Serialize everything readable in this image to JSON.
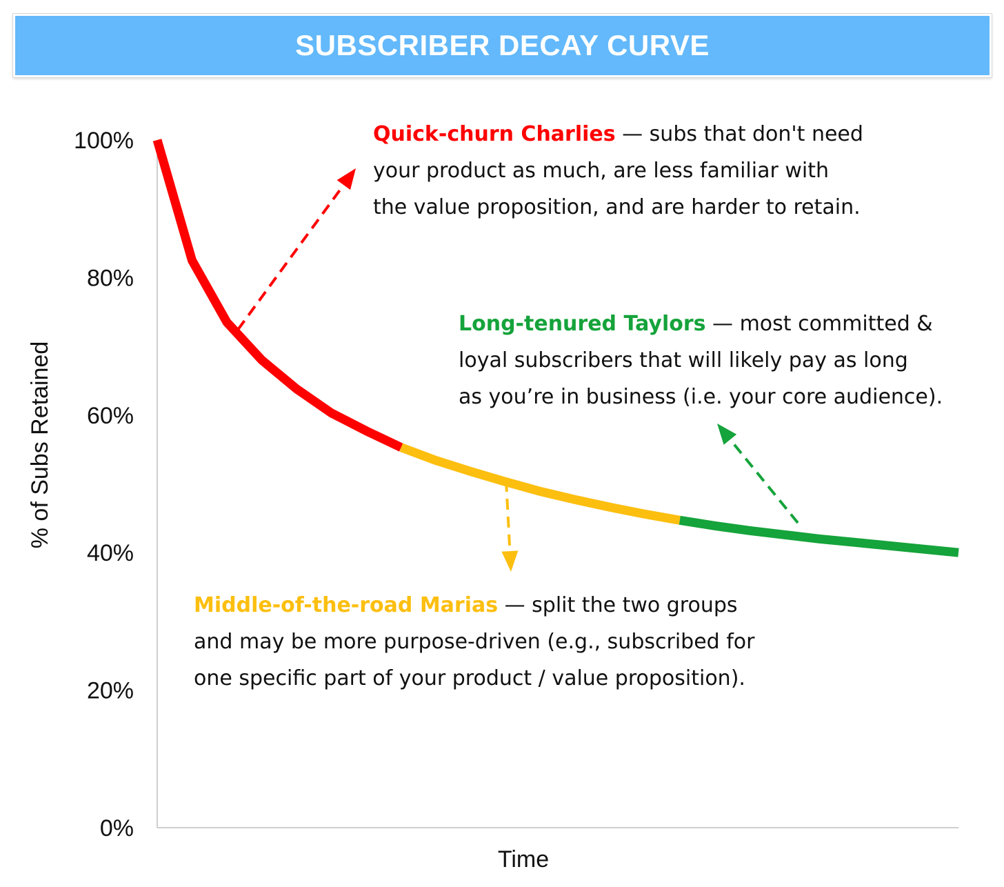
{
  "chart_data": {
    "type": "line",
    "title": "SUBSCRIBER DECAY CURVE",
    "xlabel": "Time",
    "ylabel": "% of Subs Retained",
    "ylim": [
      0,
      100
    ],
    "yticks": [
      "0%",
      "20%",
      "40%",
      "60%",
      "80%",
      "100%"
    ],
    "ytick_values": [
      0,
      20,
      40,
      60,
      80,
      100
    ],
    "grid": false,
    "x": [
      0,
      1,
      2,
      3,
      4,
      5,
      6,
      7,
      8,
      9,
      10,
      11,
      12,
      13,
      14,
      15,
      16,
      17,
      18,
      19,
      20,
      21,
      22,
      23
    ],
    "values": [
      100,
      82.5,
      73.5,
      68,
      63.8,
      60.3,
      57.7,
      55.3,
      53.4,
      51.8,
      50.3,
      48.9,
      47.7,
      46.6,
      45.6,
      44.7,
      43.9,
      43.2,
      42.6,
      42,
      41.5,
      41,
      40.5,
      40
    ],
    "series": [
      {
        "name": "Quick-churn Charlies",
        "color": "#fe0000",
        "from_index": 0,
        "to_index": 7
      },
      {
        "name": "Middle-of-the-road Marias",
        "color": "#fcbf10",
        "from_index": 7,
        "to_index": 15
      },
      {
        "name": "Long-tenured Taylors",
        "color": "#15a33b",
        "from_index": 15,
        "to_index": 23
      }
    ],
    "annotations": [
      {
        "name": "Quick-churn Charlies",
        "color": "#fe0000",
        "lines": [
          "Quick-churn Charlies — subs that don't need",
          "your product as much, are less familiar with",
          "the value proposition, and are harder to retain."
        ]
      },
      {
        "name": "Long-tenured Taylors",
        "color": "#15a33b",
        "lines": [
          "Long-tenured Taylors — most committed &",
          "loyal subscribers that will likely pay as long",
          "as you’re in business (i.e. your core audience)."
        ]
      },
      {
        "name": "Middle-of-the-road Marias",
        "color": "#fcbf10",
        "lines": [
          "Middle-of-the-road Marias — split the two groups",
          "and may be more purpose-driven (e.g., subscribed for",
          "one specific part of your product / value proposition)."
        ]
      }
    ]
  },
  "notes": {
    "charlies": {
      "lead": "Quick-churn Charlies",
      "rest": " — subs that don't need",
      "line2": "your product as much, are less familiar with",
      "line3": "the value proposition, and are harder to retain."
    },
    "taylors": {
      "lead": "Long-tenured Taylors",
      "rest": " — most committed &",
      "line2": "loyal subscribers that will likely pay as long",
      "line3": "as you’re in business (i.e. your core audience)."
    },
    "marias": {
      "lead": "Middle-of-the-road Marias",
      "rest": " — split the two groups",
      "line2": "and may be more purpose-driven (e.g., subscribed for",
      "line3": "one specific part of your product / value proposition)."
    }
  }
}
